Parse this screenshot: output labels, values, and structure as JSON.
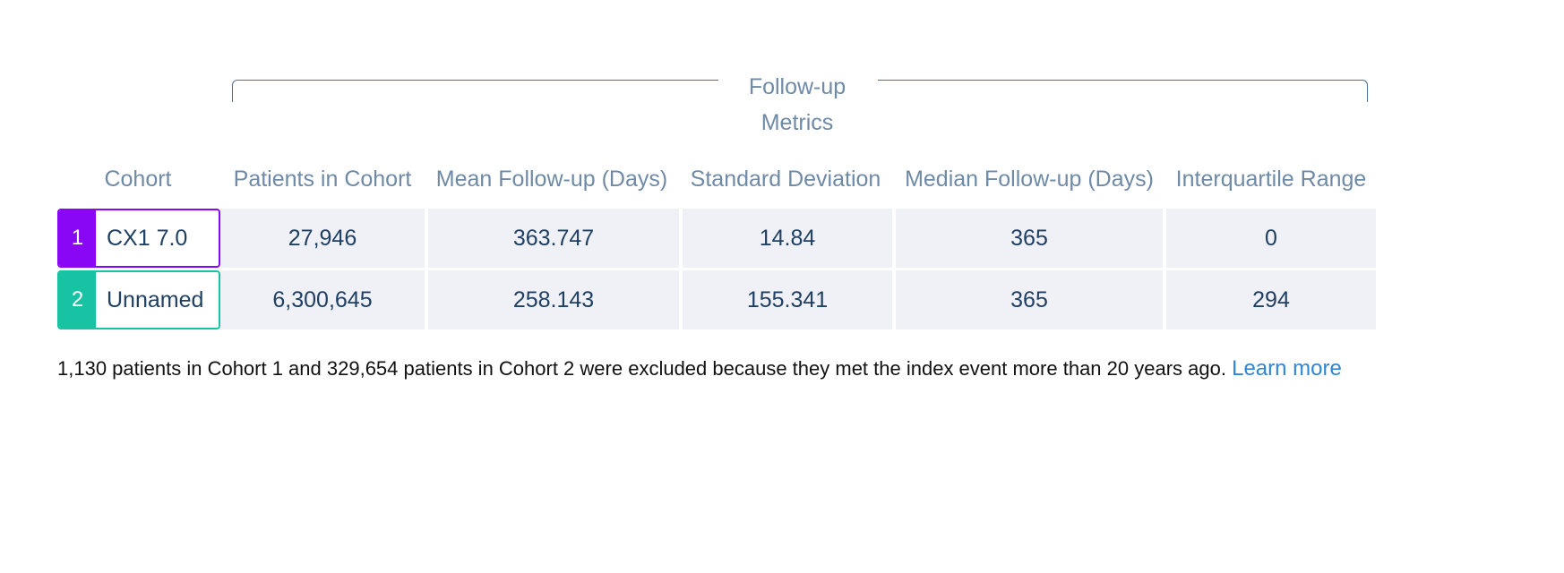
{
  "group_header": {
    "line1": "Follow-up",
    "line2": "Metrics"
  },
  "columns": {
    "cohort": "Cohort",
    "patients": "Patients in Cohort",
    "mean": "Mean Follow-up (Days)",
    "std": "Standard Deviation",
    "median": "Median Follow-up (Days)",
    "iqr": "Interquartile Range"
  },
  "rows": [
    {
      "number": "1",
      "name": "CX1 7.0",
      "color": "#8a07f5",
      "patients": "27,946",
      "mean": "363.747",
      "std": "14.84",
      "median": "365",
      "iqr": "0"
    },
    {
      "number": "2",
      "name": "Unnamed",
      "color": "#17c3a3",
      "patients": "6,300,645",
      "mean": "258.143",
      "std": "155.341",
      "median": "365",
      "iqr": "294"
    }
  ],
  "footnote": {
    "text": "1,130 patients in Cohort 1 and 329,654 patients in Cohort 2 were excluded because they met the index event more than 20 years ago.",
    "link": "Learn more"
  }
}
